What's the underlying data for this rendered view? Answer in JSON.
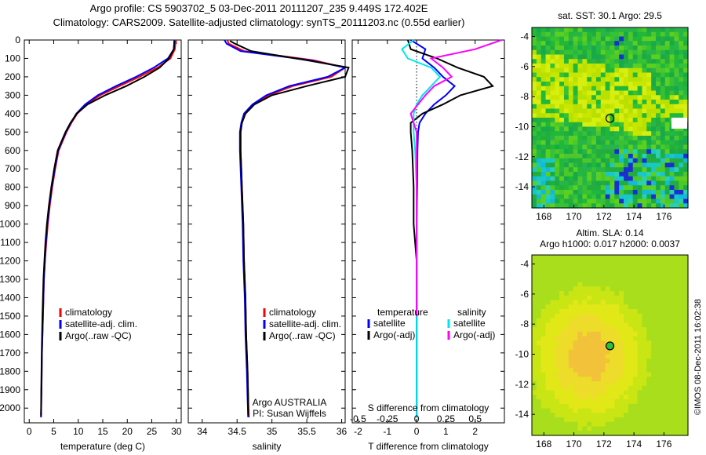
{
  "header": {
    "line1": "Argo profile: CS 5903702_5 03-Dec-2011 20111207_235 9.449S 172.402E",
    "line2": "Climatology: CARS2009. Satellite-adjusted climatology: synTS_20111203.nc (0.55d earlier)"
  },
  "colors": {
    "climatology": "#ff0000",
    "satellite": "#0000ff",
    "argo": "#000000",
    "salinity_satellite": "#00e5ee",
    "salinity_argo": "#ff00ff"
  },
  "chart_data": [
    {
      "type": "line",
      "panel": "temperature",
      "xlabel": "temperature (deg C)",
      "ylabel": "",
      "xlim": [
        -1,
        31
      ],
      "ylim": [
        2080,
        0
      ],
      "x_ticks": [
        0,
        5,
        10,
        15,
        20,
        25,
        30
      ],
      "y_ticks": [
        0,
        100,
        200,
        300,
        400,
        500,
        600,
        700,
        800,
        900,
        1000,
        1100,
        1200,
        1300,
        1400,
        1500,
        1600,
        1700,
        1800,
        1900,
        2000
      ],
      "legend": [
        "climatology",
        "satellite-adj. clim.",
        "Argo(..raw -QC)"
      ],
      "legend_position": "bottom-center",
      "series": [
        {
          "name": "climatology",
          "color": "#ff0000",
          "x": [
            29.9,
            29.7,
            28.8,
            26.2,
            22.5,
            18.4,
            14.5,
            11.7,
            9.8,
            8.6,
            7.6,
            6.8,
            6.0,
            5.3,
            4.7,
            4.2,
            3.8,
            3.5,
            3.2,
            3.0,
            2.8,
            2.6,
            2.5,
            2.4
          ],
          "y": [
            0,
            50,
            100,
            150,
            200,
            250,
            300,
            350,
            400,
            450,
            500,
            550,
            600,
            700,
            800,
            900,
            1000,
            1100,
            1200,
            1300,
            1500,
            1700,
            1900,
            2050
          ]
        },
        {
          "name": "satellite-adj. clim.",
          "color": "#0000ff",
          "x": [
            29.6,
            29.5,
            28.3,
            25.4,
            21.8,
            17.7,
            14.0,
            11.4,
            9.6,
            8.5,
            7.5,
            6.7,
            5.9,
            5.2,
            4.6,
            4.1,
            3.7,
            3.4,
            3.2,
            3.0,
            2.8,
            2.6,
            2.5,
            2.4
          ],
          "y": [
            0,
            50,
            100,
            150,
            200,
            250,
            300,
            350,
            400,
            450,
            500,
            550,
            600,
            700,
            800,
            900,
            1000,
            1100,
            1200,
            1300,
            1500,
            1700,
            1900,
            2050
          ]
        },
        {
          "name": "Argo(..raw -QC)",
          "color": "#000000",
          "x": [
            29.6,
            29.5,
            28.5,
            26.6,
            23.5,
            19.8,
            15.5,
            11.9,
            9.7,
            8.4,
            7.4,
            6.6,
            5.8,
            5.1,
            4.5,
            4.0,
            3.6,
            3.3,
            3.1,
            2.9,
            2.7,
            2.55,
            2.45,
            2.4
          ],
          "y": [
            5,
            50,
            100,
            150,
            200,
            250,
            300,
            350,
            400,
            450,
            500,
            550,
            600,
            700,
            800,
            900,
            1000,
            1100,
            1200,
            1300,
            1500,
            1700,
            1900,
            2040
          ]
        }
      ]
    },
    {
      "type": "line",
      "panel": "salinity",
      "xlabel": "salinity",
      "xlim": [
        33.8,
        36.05
      ],
      "ylim": [
        2080,
        0
      ],
      "x_ticks": [
        34,
        34.5,
        35,
        35.5,
        36
      ],
      "legend": [
        "climatology",
        "satellite-adj. clim.",
        "Argo(..raw -QC)"
      ],
      "legend_position": "bottom-right",
      "annotation": [
        "Argo AUSTRALIA",
        "PI: Susan Wijffels"
      ],
      "series": [
        {
          "name": "climatology",
          "color": "#ff0000",
          "x": [
            34.36,
            34.38,
            34.6,
            35.6,
            36.05,
            35.85,
            35.3,
            34.95,
            34.75,
            34.62,
            34.57,
            34.55,
            34.55,
            34.56,
            34.57,
            34.58,
            34.59,
            34.6,
            34.62,
            34.63,
            34.65,
            34.66,
            34.67
          ],
          "y": [
            0,
            20,
            60,
            110,
            150,
            200,
            250,
            300,
            350,
            400,
            450,
            500,
            600,
            700,
            800,
            900,
            1000,
            1200,
            1400,
            1600,
            1800,
            1950,
            2050
          ]
        },
        {
          "name": "satellite-adj. clim.",
          "color": "#0000ff",
          "x": [
            34.32,
            34.35,
            34.55,
            35.55,
            36.05,
            35.8,
            35.25,
            34.92,
            34.72,
            34.6,
            34.56,
            34.54,
            34.54,
            34.55,
            34.56,
            34.57,
            34.58,
            34.59,
            34.61,
            34.62,
            34.64,
            34.65,
            34.66
          ],
          "y": [
            0,
            20,
            60,
            110,
            150,
            200,
            250,
            300,
            350,
            400,
            450,
            500,
            600,
            700,
            800,
            900,
            1000,
            1200,
            1400,
            1600,
            1800,
            1950,
            2050
          ]
        },
        {
          "name": "Argo(..raw -QC)",
          "color": "#000000",
          "x": [
            34.4,
            34.47,
            34.7,
            35.5,
            36.1,
            36.05,
            35.5,
            35.0,
            34.75,
            34.62,
            34.57,
            34.55,
            34.55,
            34.56,
            34.57,
            34.58,
            34.59,
            34.6,
            34.62,
            34.63,
            34.65,
            34.66,
            34.66
          ],
          "y": [
            5,
            20,
            60,
            110,
            150,
            200,
            250,
            300,
            350,
            400,
            450,
            500,
            600,
            700,
            800,
            900,
            1000,
            1200,
            1400,
            1600,
            1800,
            1950,
            2040
          ]
        }
      ]
    },
    {
      "type": "line",
      "panel": "difference",
      "xlabel": "T difference from climatology",
      "xlabel_top": "S difference from climatology",
      "xlim": [
        -2.2,
        3.0
      ],
      "ylim": [
        2080,
        0
      ],
      "x_ticks": [
        -2,
        -1,
        0,
        1,
        2
      ],
      "x_ticks_top": [
        "-0.5",
        "-0.25",
        "0",
        "0.25",
        "0.5"
      ],
      "legend_left_title": "temperature",
      "legend_right_title": "salinity",
      "legend": [
        "satellite",
        "Argo(-adj)",
        "satellite",
        "Argo(-adj)"
      ],
      "series": [
        {
          "name": "satellite",
          "quantity": "temperature",
          "color": "#0000ff",
          "x": [
            -0.2,
            0.3,
            0.2,
            0.6,
            0.9,
            1.3,
            1.0,
            0.6,
            0.3,
            0.1,
            0.05,
            0.03,
            0.02,
            0.0,
            0.0,
            0.0,
            0.0,
            0.0
          ],
          "y": [
            0,
            50,
            100,
            150,
            200,
            250,
            300,
            350,
            400,
            450,
            500,
            600,
            800,
            1000,
            1200,
            1500,
            1800,
            2050
          ]
        },
        {
          "name": "Argo(-adj)",
          "quantity": "temperature",
          "color": "#000000",
          "x": [
            -0.3,
            -0.2,
            0.7,
            1.4,
            2.3,
            2.6,
            1.5,
            0.9,
            0.2,
            -0.2,
            -0.2,
            -0.15,
            -0.1,
            -0.1,
            0.0,
            0.0,
            0.0,
            0.0
          ],
          "y": [
            0,
            50,
            100,
            150,
            200,
            250,
            300,
            350,
            400,
            450,
            500,
            600,
            800,
            1000,
            1200,
            1500,
            1800,
            2050
          ]
        },
        {
          "name": "satellite",
          "quantity": "salinity",
          "color": "#00e5ee",
          "x": [
            -0.1,
            -0.5,
            -0.3,
            0.5,
            0.8,
            0.5,
            0.2,
            0.0,
            -0.1,
            -0.1,
            -0.1,
            -0.05,
            0.0,
            0.0,
            0.0,
            0.0,
            0.0
          ],
          "y": [
            0,
            50,
            100,
            150,
            200,
            250,
            300,
            350,
            400,
            450,
            500,
            600,
            800,
            1000,
            1200,
            1500,
            2050
          ]
        },
        {
          "name": "Argo(-adj)",
          "quantity": "salinity",
          "color": "#ff00ff",
          "x": [
            2.9,
            2.0,
            0.5,
            0.9,
            1.2,
            0.6,
            0.3,
            0.05,
            -0.2,
            -0.1,
            0.0,
            0.0,
            0.0,
            0.0,
            0.0
          ],
          "y": [
            0,
            50,
            100,
            150,
            200,
            250,
            300,
            350,
            400,
            450,
            500,
            600,
            800,
            1000,
            1500
          ]
        }
      ]
    },
    {
      "type": "heatmap",
      "panel": "sst-map",
      "title": "sat. SST: 30.1  Argo: 29.5",
      "xlim": [
        167.2,
        177.6
      ],
      "ylim": [
        -15.4,
        -3.4
      ],
      "x_ticks": [
        168,
        170,
        172,
        174,
        176
      ],
      "y_ticks": [
        -4,
        -6,
        -8,
        -10,
        -12,
        -14
      ],
      "argo_position": {
        "lon": 172.402,
        "lat": -9.449
      },
      "field": "sst"
    },
    {
      "type": "heatmap",
      "panel": "sla-map",
      "title": "Altim. SLA: 0.14",
      "subtitle": "Argo h1000: 0.017  h2000: 0.0037",
      "xlim": [
        167.2,
        177.6
      ],
      "ylim": [
        -15.4,
        -3.4
      ],
      "x_ticks": [
        168,
        170,
        172,
        174,
        176
      ],
      "y_ticks": [
        -4,
        -6,
        -8,
        -10,
        -12,
        -14
      ],
      "argo_position": {
        "lon": 172.402,
        "lat": -9.449
      },
      "field": "sla"
    }
  ],
  "footer": {
    "stamp": "©IMOS 08-Dec-2011 16:02:38"
  }
}
